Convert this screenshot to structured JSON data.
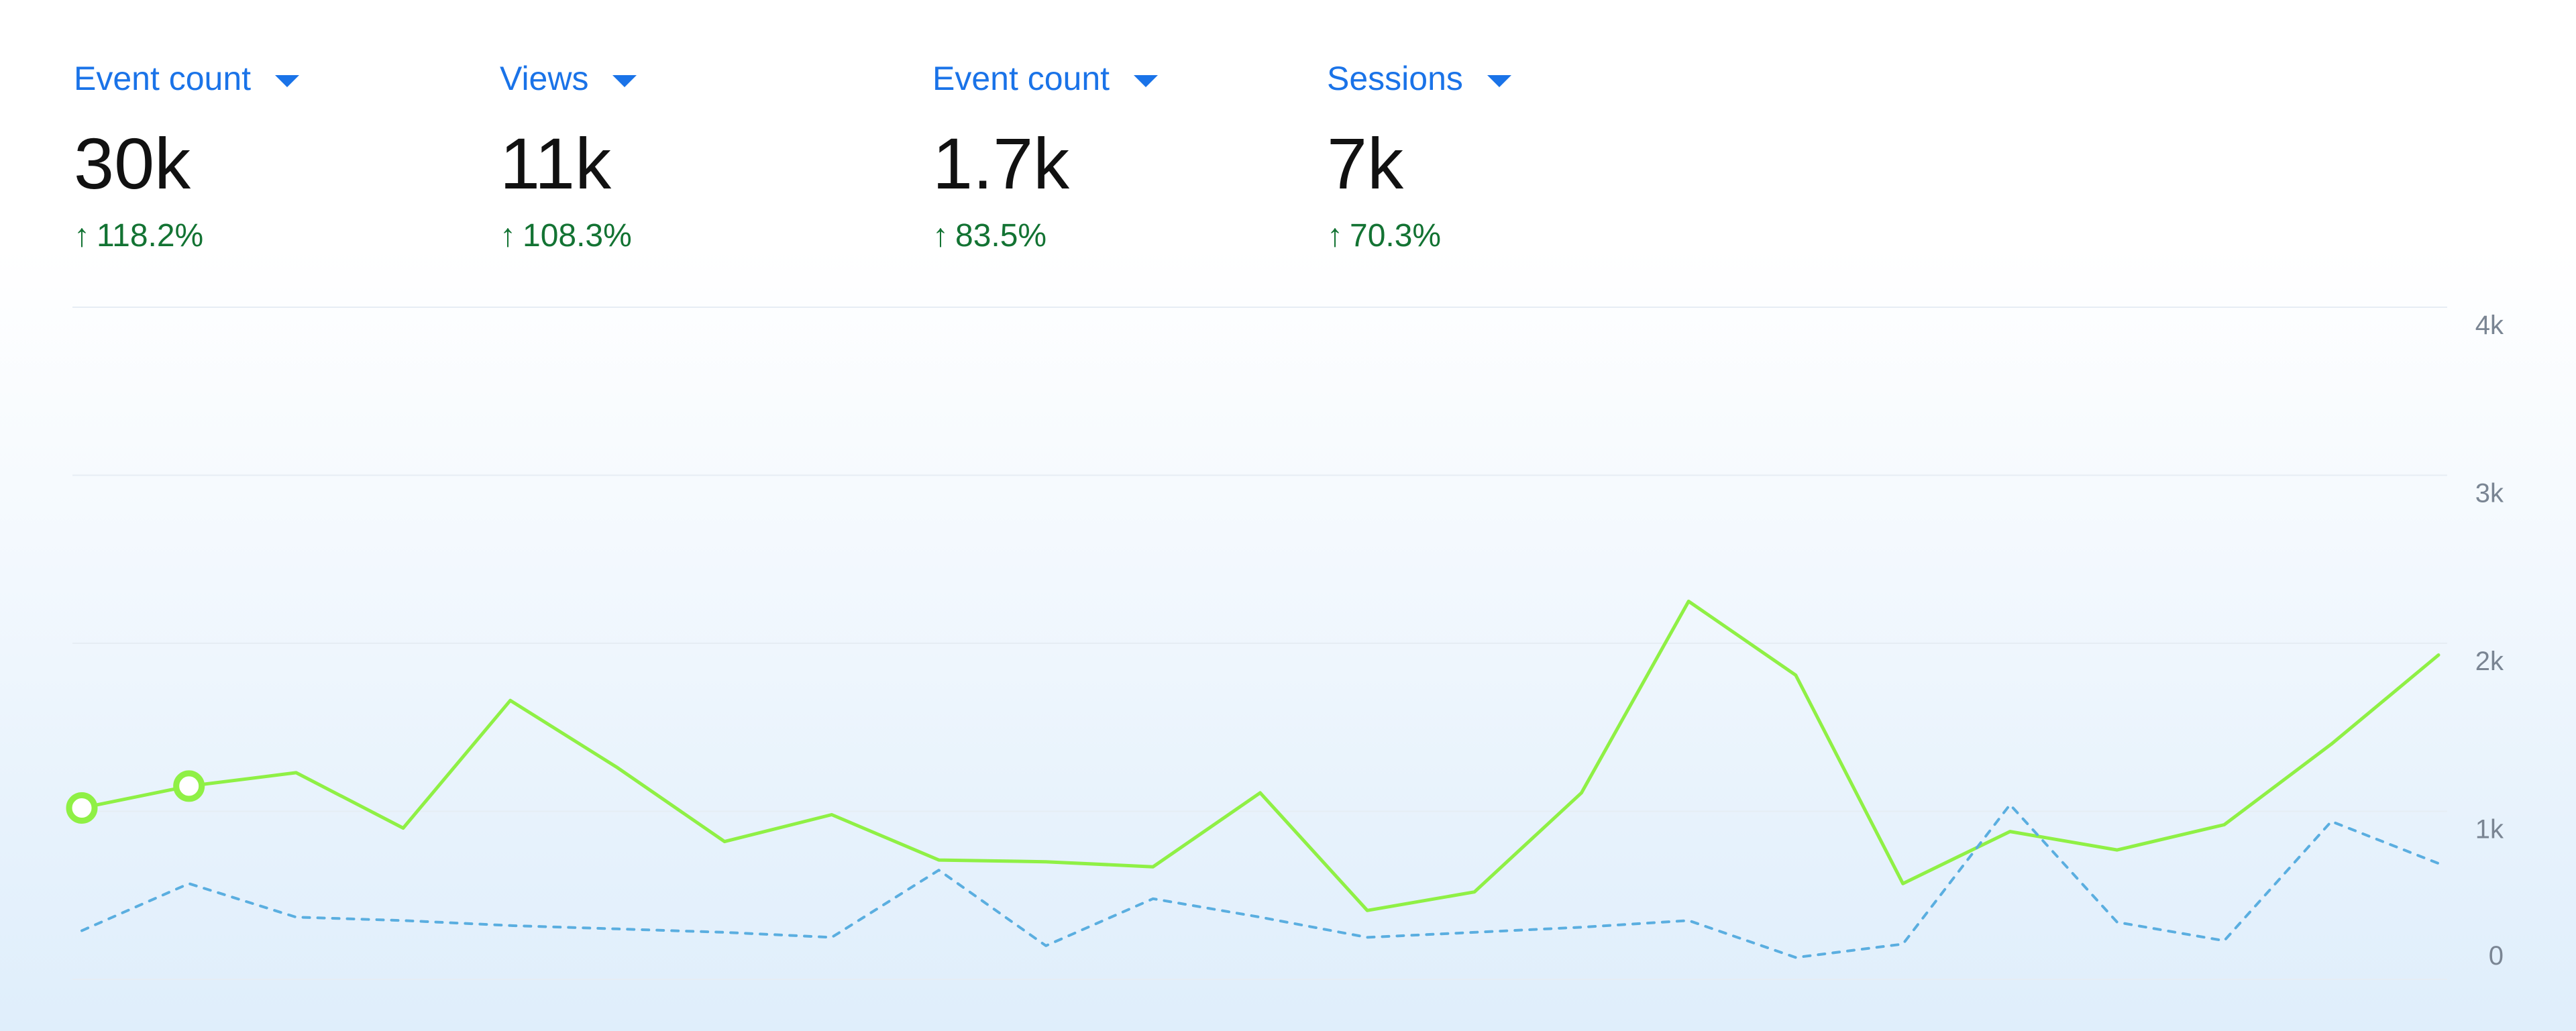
{
  "metrics": [
    {
      "label": "Event count",
      "value": "30k",
      "change": "118.2%"
    },
    {
      "label": "Views",
      "value": "11k",
      "change": "108.3%"
    },
    {
      "label": "Event count",
      "value": "1.7k",
      "change": "83.5%"
    },
    {
      "label": "Sessions",
      "value": "7k",
      "change": "70.3%"
    }
  ],
  "colors": {
    "label": "#1a73e8",
    "change_positive": "#137333",
    "series_primary": "#8ff045",
    "series_secondary": "#5aaee0",
    "gridline": "#e6edf4",
    "tick": "#7a8593"
  },
  "chart_data": {
    "type": "line",
    "ylim": [
      0,
      4000
    ],
    "y_ticks": [
      {
        "value": 0,
        "label": "0"
      },
      {
        "value": 1000,
        "label": "1k"
      },
      {
        "value": 2000,
        "label": "2k"
      },
      {
        "value": 3000,
        "label": "3k"
      },
      {
        "value": 4000,
        "label": "4k"
      }
    ],
    "grid": true,
    "x": [
      0,
      1,
      2,
      3,
      4,
      5,
      6,
      7,
      8,
      9,
      10,
      11,
      12,
      13,
      14,
      15,
      16,
      17,
      18,
      19,
      20,
      21,
      22
    ],
    "series": [
      {
        "style": "solid",
        "color": "#8ff045",
        "values": [
          1020,
          1150,
          1230,
          900,
          1660,
          1260,
          820,
          980,
          710,
          700,
          670,
          1110,
          410,
          520,
          1110,
          2250,
          1810,
          570,
          880,
          770,
          920,
          1400,
          1930
        ],
        "markers": [
          0,
          1
        ]
      },
      {
        "style": "dashed",
        "color": "#5aaee0",
        "values": [
          290,
          570,
          370,
          350,
          320,
          300,
          280,
          250,
          650,
          200,
          480,
          370,
          250,
          280,
          310,
          350,
          130,
          210,
          1040,
          340,
          230,
          940,
          690
        ]
      }
    ]
  }
}
